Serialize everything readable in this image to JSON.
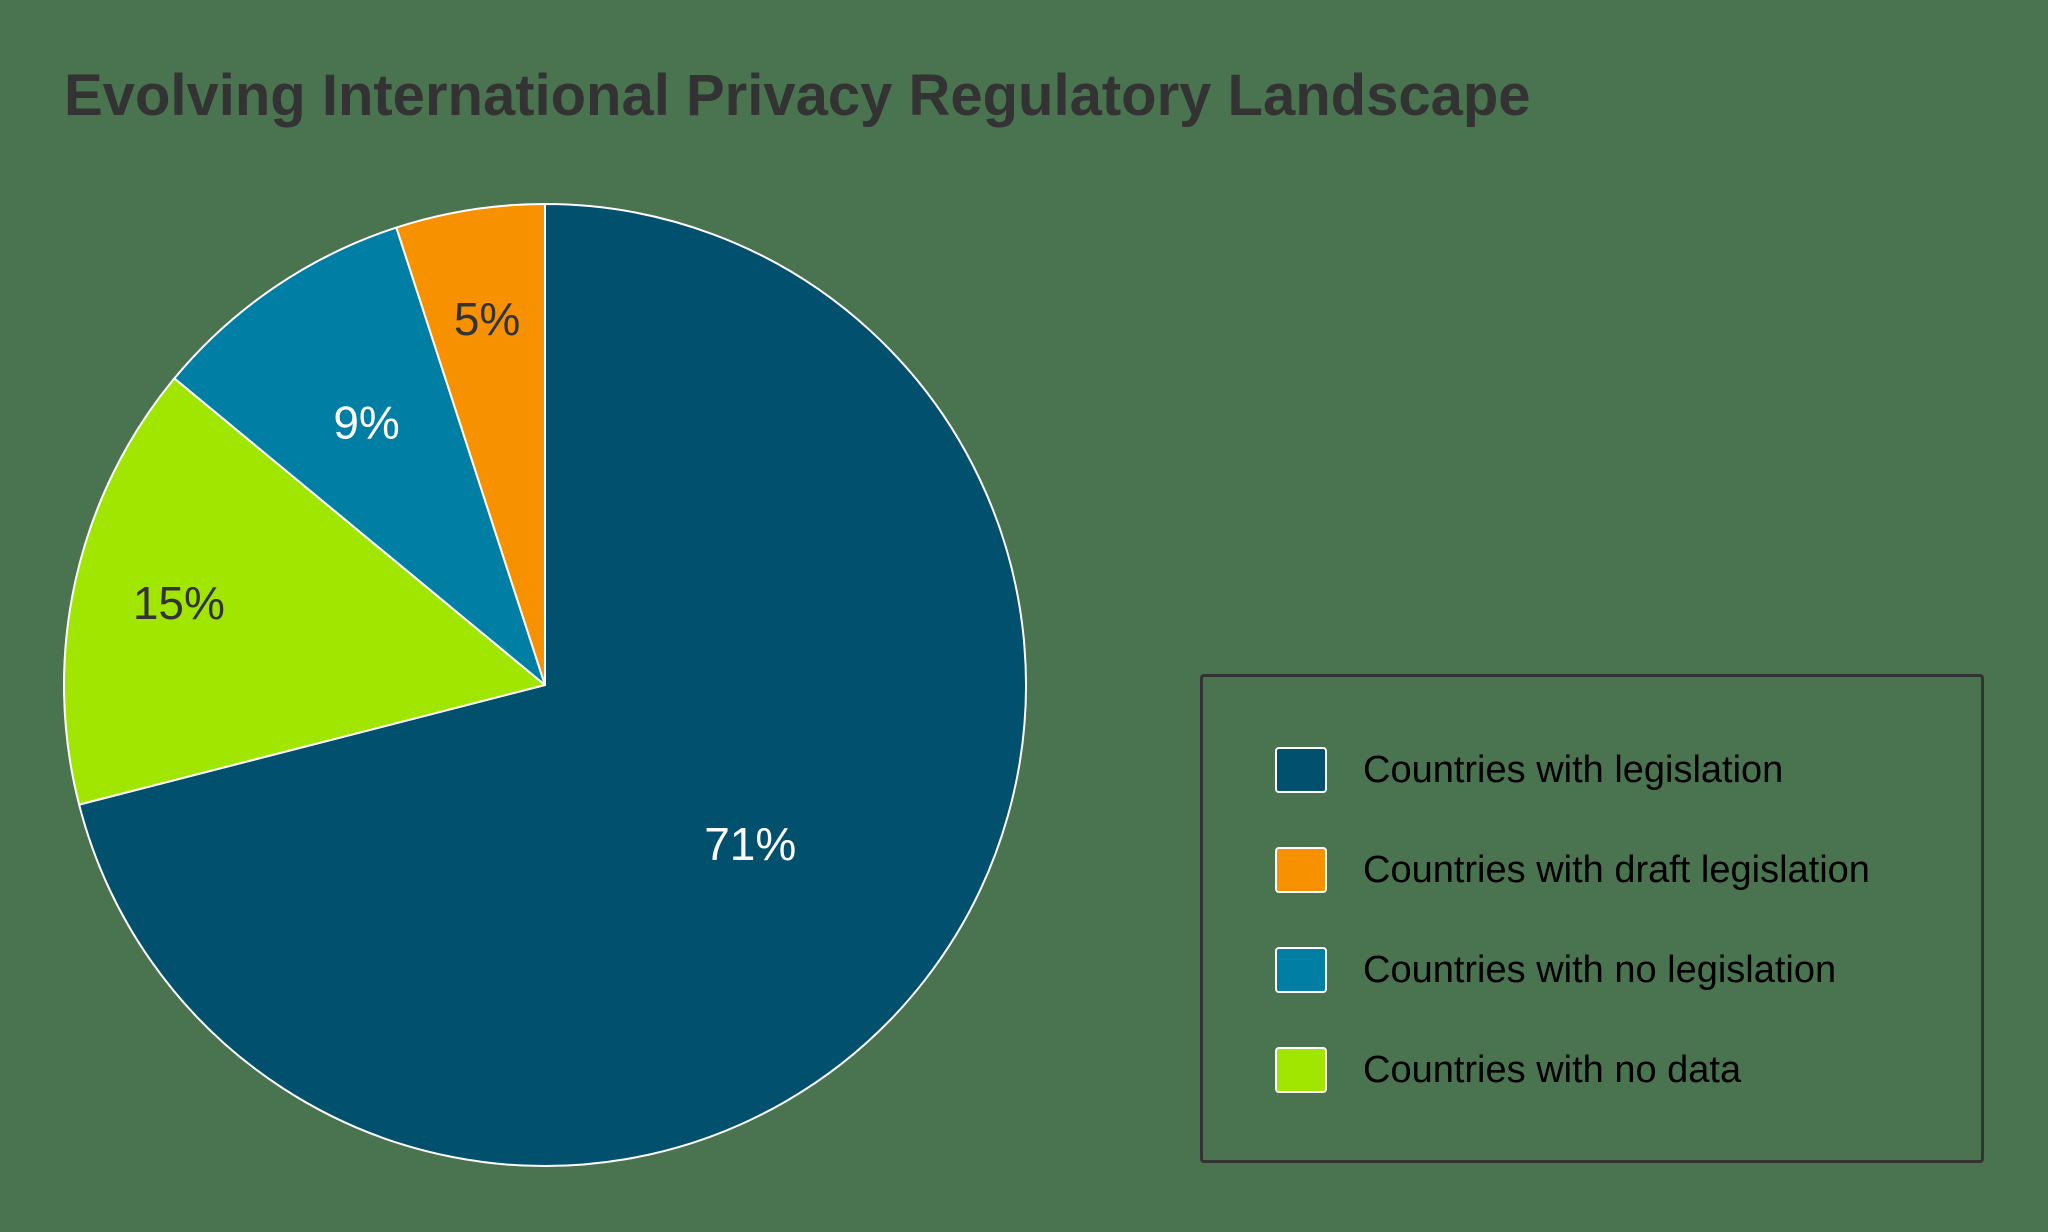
{
  "title": "Evolving International Privacy Regulatory Landscape",
  "chart_data": {
    "type": "pie",
    "title": "Evolving International Privacy Regulatory Landscape",
    "start_angle_deg": 0,
    "direction": "clockwise",
    "categories": [
      "Countries with legislation",
      "Countries with no data",
      "Countries with no legislation",
      "Countries with draft legislation"
    ],
    "values": [
      71,
      15,
      9,
      5
    ],
    "value_labels": [
      "71%",
      "15%",
      "9%",
      "5%"
    ],
    "colors": [
      "#00506E",
      "#A0E600",
      "#007EA4",
      "#F79100"
    ],
    "label_colors": [
      "#FFFFFF",
      "#333333",
      "#FFFFFF",
      "#333333"
    ],
    "legend_position": "right",
    "legend": [
      {
        "label": "Countries with legislation",
        "color": "#00506E"
      },
      {
        "label": "Countries with draft legislation",
        "color": "#F79100"
      },
      {
        "label": "Countries with no legislation",
        "color": "#007EA4"
      },
      {
        "label": "Countries with no data",
        "color": "#A0E600"
      }
    ]
  }
}
